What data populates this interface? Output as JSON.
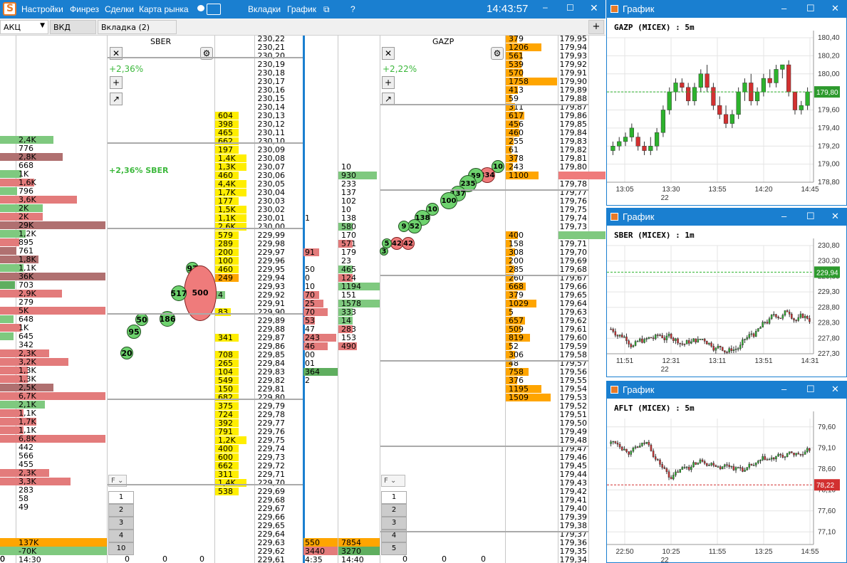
{
  "titlebar": {
    "menu": [
      "Настройки",
      "Финрез",
      "Сделки",
      "Карта рынка"
    ],
    "tabs_label": "Вкладки",
    "chart_label": "График",
    "help": "?",
    "clock": "14:43:57"
  },
  "toolbar": {
    "market": "АКЦ",
    "tab1": "ВКД",
    "tab2": "Вкладка (2)",
    "plus": "+"
  },
  "left": {
    "vols": [
      {
        "v": "2,4K",
        "c": "g",
        "w": 75
      },
      {
        "v": "776",
        "c": "",
        "w": 0
      },
      {
        "v": "2,8K",
        "c": "dr",
        "w": 88
      },
      {
        "v": "668",
        "c": "",
        "w": 0
      },
      {
        "v": "1K",
        "c": "g",
        "w": 30
      },
      {
        "v": "1,6K",
        "c": "r",
        "w": 48
      },
      {
        "v": "796",
        "c": "g",
        "w": 24
      },
      {
        "v": "3,6K",
        "c": "r",
        "w": 108
      },
      {
        "v": "2K",
        "c": "g",
        "w": 60
      },
      {
        "v": "2K",
        "c": "r",
        "w": 60
      },
      {
        "v": "29K",
        "c": "dr",
        "w": 148
      },
      {
        "v": "1,2K",
        "c": "g",
        "w": 36
      },
      {
        "v": "895",
        "c": "r",
        "w": 27
      },
      {
        "v": "761",
        "c": "dr",
        "w": 23
      },
      {
        "v": "1,8K",
        "c": "dr",
        "w": 54
      },
      {
        "v": "1,1K",
        "c": "g",
        "w": 33
      },
      {
        "v": "36K",
        "c": "dr",
        "w": 148
      },
      {
        "v": "703",
        "c": "dg",
        "w": 21
      },
      {
        "v": "2,9K",
        "c": "r",
        "w": 87
      },
      {
        "v": "279",
        "c": "",
        "w": 0
      },
      {
        "v": "5K",
        "c": "r",
        "w": 148
      },
      {
        "v": "648",
        "c": "g",
        "w": 19
      },
      {
        "v": "1K",
        "c": "r",
        "w": 30
      },
      {
        "v": "645",
        "c": "g",
        "w": 19
      },
      {
        "v": "342",
        "c": "",
        "w": 0
      },
      {
        "v": "2,3K",
        "c": "r",
        "w": 69
      },
      {
        "v": "3,2K",
        "c": "r",
        "w": 96
      },
      {
        "v": "1,3K",
        "c": "r",
        "w": 39
      },
      {
        "v": "1,3K",
        "c": "r",
        "w": 39
      },
      {
        "v": "2,5K",
        "c": "dr",
        "w": 75
      },
      {
        "v": "6,7K",
        "c": "r",
        "w": 148
      },
      {
        "v": "2,1K",
        "c": "g",
        "w": 63
      },
      {
        "v": "1,1K",
        "c": "r",
        "w": 33
      },
      {
        "v": "1,7K",
        "c": "r",
        "w": 51
      },
      {
        "v": "1,1K",
        "c": "r",
        "w": 33
      },
      {
        "v": "6,8K",
        "c": "r",
        "w": 148
      },
      {
        "v": "442",
        "c": "",
        "w": 0
      },
      {
        "v": "566",
        "c": "",
        "w": 0
      },
      {
        "v": "455",
        "c": "",
        "w": 0
      },
      {
        "v": "2,3K",
        "c": "r",
        "w": 69
      },
      {
        "v": "3,3K",
        "c": "r",
        "w": 99
      },
      {
        "v": "283",
        "c": "",
        "w": 0
      },
      {
        "v": "58",
        "c": "",
        "w": 0
      },
      {
        "v": "49",
        "c": "",
        "w": 0
      }
    ],
    "total_buy": "137K",
    "total_sell": "-70K",
    "time": "14:30"
  },
  "sber": {
    "ticker": "SBER",
    "pct": "+2,36%",
    "pct_label": "+2,36% SBER",
    "plus": "+",
    "filter": "F",
    "pages": [
      "1",
      "2",
      "3",
      "4",
      "10"
    ],
    "zeros": [
      "0",
      "0",
      "0"
    ],
    "circles": [
      {
        "v": "97",
        "c": "cg"
      },
      {
        "v": "500",
        "c": "cr"
      },
      {
        "v": "517",
        "c": "cg"
      },
      {
        "v": "186",
        "c": "cg"
      },
      {
        "v": "50",
        "c": "cg"
      },
      {
        "v": "95",
        "c": "cg"
      },
      {
        "v": "20",
        "c": "cg"
      }
    ]
  },
  "sber_prices": [
    "230,22",
    "230,21",
    "230,20",
    "230,19",
    "230,18",
    "230,17",
    "230,16",
    "230,15",
    "230,14",
    "230,13",
    "230,12",
    "230,11",
    "230,10",
    "230,09",
    "230,08",
    "230,07",
    "230,06",
    "230,05",
    "230,04",
    "230,03",
    "230,02",
    "230,01",
    "230,00",
    "229,99",
    "229,98",
    "229,97",
    "229,96",
    "229,95",
    "229,94",
    "229,93",
    "229,92",
    "229,91",
    "229,90",
    "229,89",
    "229,88",
    "229,87",
    "229,86",
    "229,85",
    "229,84",
    "229,83",
    "229,82",
    "229,81",
    "229,80",
    "229,79",
    "229,78",
    "229,77",
    "229,76",
    "229,75",
    "229,74",
    "229,73",
    "229,72",
    "229,71",
    "229,70",
    "229,69",
    "229,68",
    "229,67",
    "229,66",
    "229,65",
    "229,64",
    "229,63",
    "229,62",
    "229,61"
  ],
  "sber_book": [
    [
      "",
      ""
    ],
    [
      "",
      ""
    ],
    [
      "",
      ""
    ],
    [
      "",
      ""
    ],
    [
      "",
      ""
    ],
    [
      "",
      ""
    ],
    [
      "",
      ""
    ],
    [
      "",
      ""
    ],
    [
      "",
      ""
    ],
    [
      "604",
      "y"
    ],
    [
      "398",
      "y"
    ],
    [
      "465",
      "y"
    ],
    [
      "662",
      "y"
    ],
    [
      "197",
      "y"
    ],
    [
      "1,4K",
      "y"
    ],
    [
      "1,3K",
      "y"
    ],
    [
      "460",
      "y"
    ],
    [
      "4,4K",
      "y"
    ],
    [
      "1,7K",
      "y"
    ],
    [
      "177",
      "y"
    ],
    [
      "1,5K",
      "y"
    ],
    [
      "1,1K",
      "y"
    ],
    [
      "2,6K",
      "y"
    ],
    [
      "579",
      "y"
    ],
    [
      "289",
      "y"
    ],
    [
      "200",
      "y"
    ],
    [
      "100",
      "y"
    ],
    [
      "460",
      "y"
    ],
    [
      "249",
      "or"
    ],
    [
      "",
      ""
    ],
    [
      "4",
      "g"
    ],
    [
      "",
      ""
    ],
    [
      "83",
      "y"
    ],
    [
      "",
      ""
    ],
    [
      "",
      ""
    ],
    [
      "341",
      "y"
    ],
    [
      "",
      ""
    ],
    [
      "708",
      "y"
    ],
    [
      "265",
      "y"
    ],
    [
      "104",
      "y"
    ],
    [
      "549",
      "y"
    ],
    [
      "150",
      "y"
    ],
    [
      "682",
      "y"
    ],
    [
      "375",
      "y"
    ],
    [
      "724",
      "y"
    ],
    [
      "392",
      "y"
    ],
    [
      "791",
      "y"
    ],
    [
      "1,2K",
      "y"
    ],
    [
      "400",
      "y"
    ],
    [
      "600",
      "y"
    ],
    [
      "662",
      "y"
    ],
    [
      "311",
      "y"
    ],
    [
      "1,4K",
      "y"
    ],
    [
      "538",
      "y"
    ]
  ],
  "mid": {
    "trades": [
      "1",
      "91",
      "50",
      "0",
      "10",
      "70",
      "25",
      "70",
      "53",
      "47",
      "243",
      "46",
      "00",
      "01",
      "364",
      "2"
    ],
    "vols": [
      "10",
      "930",
      "233",
      "137",
      "102",
      "10",
      "138",
      "580",
      "170",
      "571",
      "179",
      "23",
      "465",
      "124",
      "1194",
      "151",
      "1578",
      "333",
      "14",
      "283",
      "153",
      "490"
    ],
    "total_a": "550",
    "total_b": "7854",
    "total_c": "3440",
    "total_d": "3270",
    "t1": "4:35",
    "t2": "14:40"
  },
  "gazp": {
    "ticker": "GAZP",
    "pct": "+2,22%",
    "plus": "+",
    "filter": "F",
    "pages": [
      "1",
      "2",
      "3",
      "4",
      "5"
    ],
    "zeros": [
      "0",
      "0",
      "0"
    ],
    "circles": [
      {
        "v": "10",
        "c": "cg"
      },
      {
        "v": "334",
        "c": "cr"
      },
      {
        "v": "59",
        "c": "cg"
      },
      {
        "v": "235",
        "c": "cg"
      },
      {
        "v": "137",
        "c": "cg"
      },
      {
        "v": "100",
        "c": "cg"
      },
      {
        "v": "10",
        "c": "cg"
      },
      {
        "v": "138",
        "c": "cg"
      },
      {
        "v": "52",
        "c": "cg"
      },
      {
        "v": "9",
        "c": "cg"
      },
      {
        "v": "42",
        "c": "cr"
      },
      {
        "v": "42",
        "c": "cr"
      },
      {
        "v": "5",
        "c": "cg"
      },
      {
        "v": "3",
        "c": "cg"
      }
    ]
  },
  "gazp_prices": [
    "179,95",
    "179,94",
    "179,93",
    "179,92",
    "179,91",
    "179,90",
    "179,89",
    "179,88",
    "179,87",
    "179,86",
    "179,85",
    "179,84",
    "179,83",
    "179,82",
    "179,81",
    "179,80",
    "179,79",
    "179,78",
    "179,77",
    "179,76",
    "179,75",
    "179,74",
    "179,73",
    "179,72",
    "179,71",
    "179,70",
    "179,69",
    "179,68",
    "179,67",
    "179,66",
    "179,65",
    "179,64",
    "179,63",
    "179,62",
    "179,61",
    "179,60",
    "179,59",
    "179,58",
    "179,57",
    "179,56",
    "179,55",
    "179,54",
    "179,53",
    "179,52",
    "179,51",
    "179,50",
    "179,49",
    "179,48",
    "179,47",
    "179,46",
    "179,45",
    "179,44",
    "179,43",
    "179,42",
    "179,41",
    "179,40",
    "179,39",
    "179,38",
    "179,37",
    "179,36",
    "179,35",
    "179,34"
  ],
  "gazp_book": [
    [
      "379",
      "or"
    ],
    [
      "1206",
      "or"
    ],
    [
      "561",
      "or"
    ],
    [
      "539",
      "or"
    ],
    [
      "570",
      "or"
    ],
    [
      "1758",
      "or"
    ],
    [
      "413",
      "or"
    ],
    [
      "59",
      "or"
    ],
    [
      "311",
      "or"
    ],
    [
      "617",
      "or"
    ],
    [
      "456",
      "or"
    ],
    [
      "460",
      "or"
    ],
    [
      "255",
      "or"
    ],
    [
      "61",
      "or"
    ],
    [
      "378",
      "or"
    ],
    [
      "243",
      "or"
    ],
    [
      "1100",
      "or"
    ],
    [
      "",
      ""
    ],
    [
      "",
      ""
    ],
    [
      "",
      ""
    ],
    [
      "",
      ""
    ],
    [
      "",
      ""
    ],
    [
      "",
      ""
    ],
    [
      "400",
      "or"
    ],
    [
      "158",
      "or"
    ],
    [
      "308",
      "or"
    ],
    [
      "200",
      "or"
    ],
    [
      "285",
      "or"
    ],
    [
      "260",
      "or"
    ],
    [
      "668",
      "or"
    ],
    [
      "379",
      "or"
    ],
    [
      "1029",
      "or"
    ],
    [
      "5",
      "or"
    ],
    [
      "657",
      "or"
    ],
    [
      "509",
      "or"
    ],
    [
      "819",
      "or"
    ],
    [
      "52",
      "or"
    ],
    [
      "306",
      "or"
    ],
    [
      "48",
      "or"
    ],
    [
      "758",
      "or"
    ],
    [
      "376",
      "or"
    ],
    [
      "1195",
      "or"
    ],
    [
      "1509",
      "or"
    ]
  ],
  "charts": [
    {
      "window": "График",
      "title": "GAZP (MICEX) : 5m",
      "yticks": [
        "180,40",
        "180,20",
        "180,00",
        "179,80",
        "179,60",
        "179,40",
        "179,20",
        "179,00",
        "178,80"
      ],
      "xticks": [
        "13:05",
        "13:30",
        "13:55",
        "14:20",
        "14:45"
      ],
      "day": "22",
      "last": "179,80",
      "ylim": [
        178.8,
        180.4
      ],
      "ohlc": [
        [
          179.15,
          179.25,
          179.1,
          179.2
        ],
        [
          179.2,
          179.3,
          179.15,
          179.25
        ],
        [
          179.25,
          179.35,
          179.2,
          179.3
        ],
        [
          179.3,
          179.45,
          179.25,
          179.4
        ],
        [
          179.3,
          179.35,
          179.15,
          179.2
        ],
        [
          179.2,
          179.25,
          179.1,
          179.15
        ],
        [
          179.15,
          179.3,
          179.1,
          179.2
        ],
        [
          179.2,
          179.4,
          179.15,
          179.35
        ],
        [
          179.35,
          179.65,
          179.3,
          179.6
        ],
        [
          179.6,
          179.85,
          179.55,
          179.8
        ],
        [
          179.8,
          179.95,
          179.7,
          179.9
        ],
        [
          179.9,
          179.95,
          179.8,
          179.85
        ],
        [
          179.85,
          179.9,
          179.65,
          179.7
        ],
        [
          179.7,
          179.9,
          179.65,
          179.85
        ],
        [
          179.85,
          180.05,
          179.8,
          180.0
        ],
        [
          180.0,
          180.1,
          179.8,
          179.85
        ],
        [
          179.85,
          179.9,
          179.6,
          179.65
        ],
        [
          179.65,
          179.75,
          179.5,
          179.55
        ],
        [
          179.55,
          179.65,
          179.4,
          179.45
        ],
        [
          179.45,
          179.6,
          179.4,
          179.55
        ],
        [
          179.55,
          179.85,
          179.5,
          179.8
        ],
        [
          179.8,
          179.95,
          179.7,
          179.9
        ],
        [
          179.9,
          180.0,
          179.65,
          179.7
        ],
        [
          179.7,
          179.85,
          179.65,
          179.8
        ],
        [
          179.8,
          180.0,
          179.75,
          179.95
        ],
        [
          179.95,
          180.05,
          179.85,
          179.9
        ],
        [
          179.9,
          180.1,
          179.85,
          180.05
        ],
        [
          180.05,
          180.1,
          179.95,
          180.1
        ],
        [
          180.1,
          180.15,
          179.75,
          179.8
        ],
        [
          179.8,
          179.8,
          179.55,
          179.6
        ],
        [
          179.6,
          179.7,
          179.55,
          179.65
        ],
        [
          179.65,
          179.85,
          179.6,
          179.8
        ]
      ]
    },
    {
      "window": "График",
      "title": "SBER (MICEX) : 1m",
      "yticks": [
        "230,80",
        "230,30",
        "229,80",
        "229,30",
        "228,80",
        "228,30",
        "227,80",
        "227,30"
      ],
      "xticks": [
        "11:51",
        "12:31",
        "13:11",
        "13:51",
        "14:31"
      ],
      "day": "22",
      "last": "229,94",
      "ylim": [
        227.3,
        230.8
      ]
    },
    {
      "window": "График",
      "title": "AFLT (MICEX) : 5m",
      "yticks": [
        "79,60",
        "79,10",
        "78,60",
        "78,10",
        "77,60",
        "77,10"
      ],
      "xticks": [
        "22:50",
        "10:25",
        "11:55",
        "13:25",
        "14:55"
      ],
      "day": "22",
      "last": "78,22",
      "ylim": [
        76.8,
        79.8
      ]
    }
  ]
}
